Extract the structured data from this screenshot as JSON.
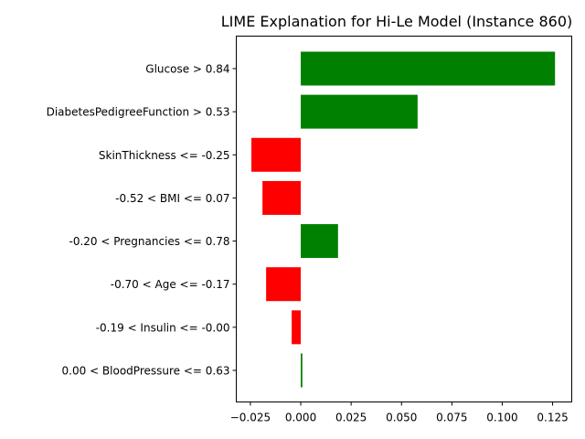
{
  "chart_data": {
    "type": "bar",
    "orientation": "horizontal",
    "title": "LIME Explanation for Hi-Le Model (Instance 860)",
    "xlabel": "",
    "ylabel": "",
    "xlim": [
      -0.032,
      0.1345
    ],
    "xticks": [
      -0.025,
      0.0,
      0.025,
      0.05,
      0.075,
      0.1,
      0.125
    ],
    "xtick_labels": [
      "−0.025",
      "0.000",
      "0.025",
      "0.050",
      "0.075",
      "0.100",
      "0.125"
    ],
    "categories": [
      "Glucose > 0.84",
      "DiabetesPedigreeFunction > 0.53",
      "SkinThickness <= -0.25",
      "-0.52 < BMI <= 0.07",
      "-0.20 < Pregnancies <= 0.78",
      "-0.70 < Age <= -0.17",
      "-0.19 < Insulin <= -0.00",
      "0.00 < BloodPressure <= 0.63"
    ],
    "values": [
      0.1262,
      0.058,
      -0.0245,
      -0.019,
      0.0185,
      -0.0172,
      -0.0045,
      0.0008
    ],
    "colors": {
      "positive": "#008000",
      "negative": "#ff0000"
    },
    "grid": false,
    "legend": "none"
  }
}
